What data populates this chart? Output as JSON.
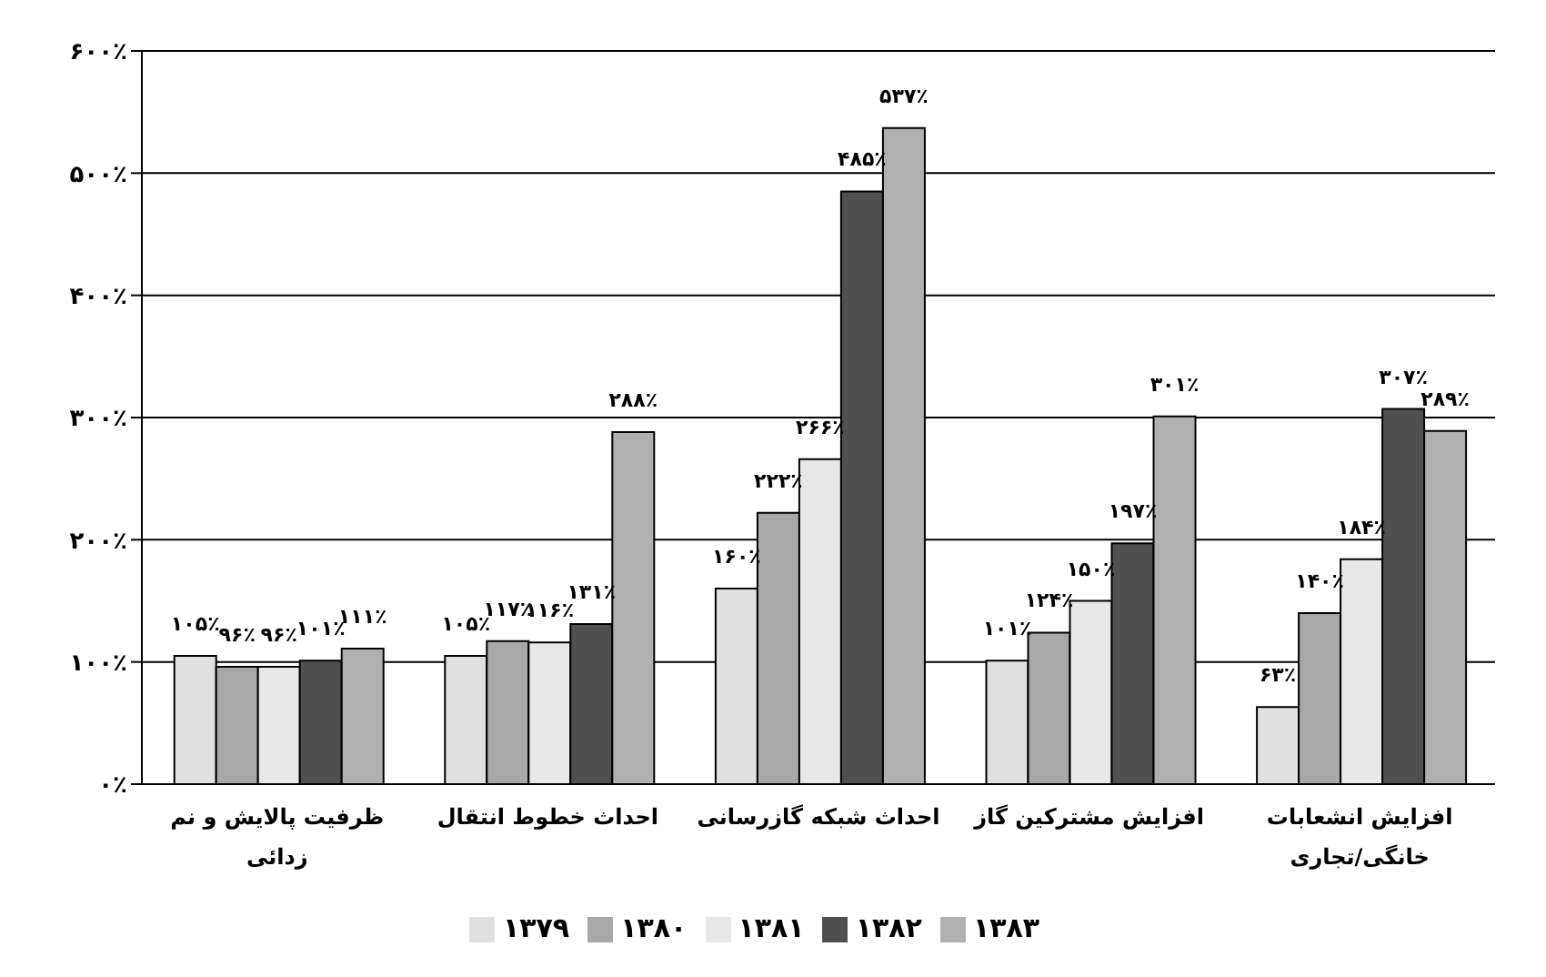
{
  "chart_data": {
    "type": "bar",
    "categories": [
      "ظرفیت پالایش و نم زدائی",
      "احداث خطوط انتقال",
      "احداث شبکه گازرسانی",
      "افزایش مشترکین گاز",
      "افزایش انشعابات خانگی/تجاری"
    ],
    "series": [
      {
        "name": "۱۳۷۹",
        "color": "#e0e0e0",
        "values": [
          105,
          105,
          160,
          101,
          63
        ],
        "value_labels": [
          "۱۰۵٪",
          "۱۰۵٪",
          "۱۶۰٪",
          "۱۰۱٪",
          "۶۳٪"
        ]
      },
      {
        "name": "۱۳۸۰",
        "color": "#a8a8a8",
        "values": [
          96,
          117,
          222,
          124,
          140
        ],
        "value_labels": [
          "۹۶٪",
          "۱۱۷٪",
          "۲۲۲٪",
          "۱۲۴٪",
          "۱۴۰٪"
        ]
      },
      {
        "name": "۱۳۸۱",
        "color": "#e8e8e8",
        "values": [
          96,
          116,
          266,
          150,
          184
        ],
        "value_labels": [
          "۹۶٪",
          "۱۱۶٪",
          "۲۶۶٪",
          "۱۵۰٪",
          "۱۸۴٪"
        ]
      },
      {
        "name": "۱۳۸۲",
        "color": "#505050",
        "values": [
          101,
          131,
          485,
          197,
          307
        ],
        "value_labels": [
          "۱۰۱٪",
          "۱۳۱٪",
          "۴۸۵٪",
          "۱۹۷٪",
          "۳۰۷٪"
        ]
      },
      {
        "name": "۱۳۸۳",
        "color": "#b0b0b0",
        "values": [
          111,
          288,
          537,
          301,
          289
        ],
        "value_labels": [
          "۱۱۱٪",
          "۲۸۸٪",
          "۵۳۷٪",
          "۳۰۱٪",
          "۲۸۹٪"
        ]
      }
    ],
    "ylim": [
      0,
      600
    ],
    "yticks": [
      {
        "value": 0,
        "label": "۰٪"
      },
      {
        "value": 100,
        "label": "۱۰۰٪"
      },
      {
        "value": 200,
        "label": "۲۰۰٪"
      },
      {
        "value": 300,
        "label": "۳۰۰٪"
      },
      {
        "value": 400,
        "label": "۴۰۰٪"
      },
      {
        "value": 500,
        "label": "۵۰۰٪"
      },
      {
        "value": 600,
        "label": "۶۰۰٪"
      }
    ],
    "grid": "y",
    "legend": "bottom"
  }
}
